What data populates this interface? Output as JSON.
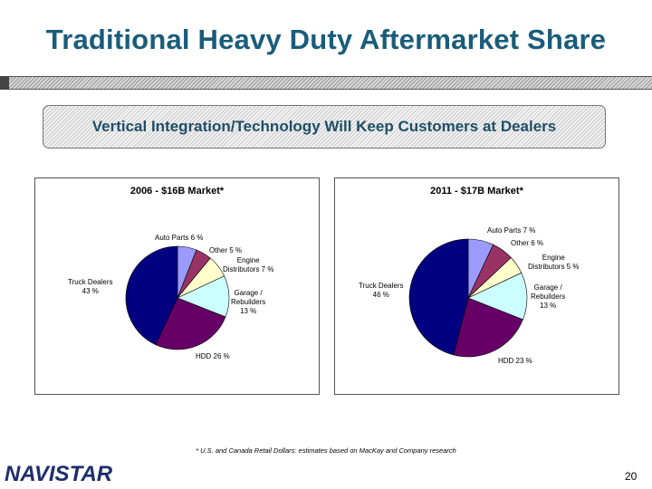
{
  "slide": {
    "title": "Traditional Heavy Duty Aftermarket Share",
    "banner": "Vertical Integration/Technology Will Keep Customers at Dealers",
    "footnote": "* U.S. and Canada Retail Dollars: estimates based on MacKay and Company research",
    "logo": "NAVISTAR",
    "page_number": "20"
  },
  "colors": {
    "title": "#1a5c7a",
    "slices": [
      "#9b9bff",
      "#993366",
      "#ffffcc",
      "#ccffff",
      "#660066",
      "#000080"
    ]
  },
  "chart_data": [
    {
      "type": "pie",
      "title": "2006 - $16B Market*",
      "categories": [
        "Auto Parts",
        "Other",
        "Engine Distributors",
        "Garage / Rebuilders",
        "HDD",
        "Truck Dealers"
      ],
      "values": [
        6,
        5,
        7,
        13,
        26,
        43
      ],
      "labels": [
        [
          "Auto Parts 6 %"
        ],
        [
          "Other 5 %"
        ],
        [
          "Engine",
          "Distributors 7 %"
        ],
        [
          "Garage /",
          "Rebuilders",
          "13 %"
        ],
        [
          "HDD 26 %"
        ],
        [
          "Truck Dealers",
          "43 %"
        ]
      ]
    },
    {
      "type": "pie",
      "title": "2011 - $17B Market*",
      "categories": [
        "Auto Parts",
        "Other",
        "Engine Distributors",
        "Garage / Rebuilders",
        "HDD",
        "Truck Dealers"
      ],
      "values": [
        7,
        6,
        5,
        13,
        23,
        46
      ],
      "labels": [
        [
          "Auto Parts 7 %"
        ],
        [
          "Other 6 %"
        ],
        [
          "Engine",
          "Distributors 5 %"
        ],
        [
          "Garage /",
          "Rebuilders",
          "13 %"
        ],
        [
          "HDD 23 %"
        ],
        [
          "Truck Dealers",
          "46 %"
        ]
      ]
    }
  ]
}
